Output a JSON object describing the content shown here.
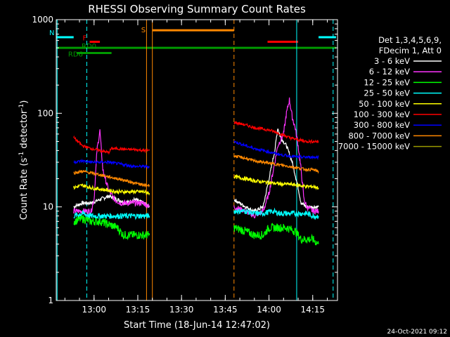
{
  "chart_data": {
    "type": "line",
    "title": "RHESSI Observing Summary Count Rates",
    "xlabel": "Start Time (18-Jun-14 12:47:02)",
    "ylabel_main": "Count Rate (s",
    "ylabel_sup1": "-1",
    "ylabel_mid": " detector",
    "ylabel_sup2": "-1",
    "ylabel_end": ")",
    "y_scale": "log",
    "ylim": [
      1,
      1000
    ],
    "xlim": [
      "12:47:02",
      "14:23:30"
    ],
    "x_ticks": [
      {
        "time": "13:00",
        "label": "13:00"
      },
      {
        "time": "13:15",
        "label": "13:15"
      },
      {
        "time": "13:30",
        "label": "13:30"
      },
      {
        "time": "13:45",
        "label": "13:45"
      },
      {
        "time": "14:00",
        "label": "14:00"
      },
      {
        "time": "14:15",
        "label": "14:15"
      }
    ],
    "y_ticks": [
      {
        "value": 1,
        "label": "1"
      },
      {
        "value": 10,
        "label": "10"
      },
      {
        "value": 100,
        "label": "100"
      },
      {
        "value": 1000,
        "label": "1000"
      }
    ],
    "legend_position": "right",
    "legend_header": [
      "Det 1,3,4,5,6,9,",
      "FDecim 1, Att 0"
    ],
    "series": [
      {
        "name": "3 - 6 keV",
        "color": "#ffffff",
        "seg1": [
          [
            "12:53",
            10
          ],
          [
            "12:56",
            11
          ],
          [
            "12:59",
            11
          ],
          [
            "13:02",
            12
          ],
          [
            "13:05",
            13
          ],
          [
            "13:08",
            12
          ],
          [
            "13:11",
            11
          ],
          [
            "13:14",
            12
          ],
          [
            "13:17",
            11
          ],
          [
            "13:19",
            10
          ]
        ],
        "seg2": [
          [
            "13:48",
            12
          ],
          [
            "13:52",
            10
          ],
          [
            "13:55",
            9
          ],
          [
            "13:58",
            10
          ],
          [
            "14:00",
            20
          ],
          [
            "14:02",
            40
          ],
          [
            "14:03",
            70
          ],
          [
            "14:04",
            55
          ],
          [
            "14:06",
            45
          ],
          [
            "14:08",
            30
          ],
          [
            "14:10",
            16
          ],
          [
            "14:11",
            11
          ],
          [
            "14:13",
            10
          ],
          [
            "14:15",
            10
          ],
          [
            "14:17",
            10
          ]
        ]
      },
      {
        "name": "6 - 12 keV",
        "color": "#ff33ff",
        "seg1": [
          [
            "12:53",
            9
          ],
          [
            "12:56",
            9
          ],
          [
            "12:59",
            9
          ],
          [
            "13:00",
            12
          ],
          [
            "13:01",
            40
          ],
          [
            "13:02",
            65
          ],
          [
            "13:03",
            25
          ],
          [
            "13:05",
            15
          ],
          [
            "13:07",
            12
          ],
          [
            "13:09",
            11
          ],
          [
            "13:11",
            11
          ],
          [
            "13:14",
            11
          ],
          [
            "13:17",
            11
          ],
          [
            "13:19",
            10
          ]
        ],
        "seg2": [
          [
            "13:48",
            10
          ],
          [
            "13:52",
            9
          ],
          [
            "13:55",
            8
          ],
          [
            "13:58",
            9
          ],
          [
            "14:00",
            14
          ],
          [
            "14:02",
            30
          ],
          [
            "14:03",
            45
          ],
          [
            "14:05",
            60
          ],
          [
            "14:06",
            100
          ],
          [
            "14:07",
            140
          ],
          [
            "14:08",
            90
          ],
          [
            "14:09",
            70
          ],
          [
            "14:10",
            45
          ],
          [
            "14:11",
            25
          ],
          [
            "14:12",
            12
          ],
          [
            "14:13",
            10
          ],
          [
            "14:15",
            9
          ],
          [
            "14:17",
            9
          ]
        ]
      },
      {
        "name": "12 - 25 keV",
        "color": "#00ff00",
        "seg1": [
          [
            "12:53",
            7
          ],
          [
            "12:56",
            7.5
          ],
          [
            "12:59",
            7
          ],
          [
            "13:02",
            7
          ],
          [
            "13:05",
            6.5
          ],
          [
            "13:08",
            6
          ],
          [
            "13:10",
            5
          ],
          [
            "13:13",
            5
          ],
          [
            "13:16",
            5
          ],
          [
            "13:19",
            5
          ]
        ],
        "seg2": [
          [
            "13:48",
            6
          ],
          [
            "13:52",
            5.5
          ],
          [
            "13:55",
            5
          ],
          [
            "13:58",
            5
          ],
          [
            "14:00",
            6
          ],
          [
            "14:03",
            6
          ],
          [
            "14:06",
            6
          ],
          [
            "14:09",
            5.5
          ],
          [
            "14:11",
            4.5
          ],
          [
            "14:13",
            4.5
          ],
          [
            "14:15",
            4.5
          ],
          [
            "14:17",
            4
          ]
        ]
      },
      {
        "name": "25 - 50 keV",
        "color": "#00ffff",
        "seg1": [
          [
            "12:53",
            8
          ],
          [
            "12:56",
            8.5
          ],
          [
            "12:59",
            8
          ],
          [
            "13:02",
            8
          ],
          [
            "13:05",
            8
          ],
          [
            "13:08",
            8
          ],
          [
            "13:11",
            8
          ],
          [
            "13:14",
            8
          ],
          [
            "13:17",
            8
          ],
          [
            "13:19",
            8
          ]
        ],
        "seg2": [
          [
            "13:48",
            9
          ],
          [
            "13:52",
            9
          ],
          [
            "13:55",
            8.5
          ],
          [
            "13:58",
            8.5
          ],
          [
            "14:01",
            9
          ],
          [
            "14:04",
            8.5
          ],
          [
            "14:07",
            8.5
          ],
          [
            "14:10",
            8.5
          ],
          [
            "14:13",
            8.5
          ],
          [
            "14:15",
            8
          ],
          [
            "14:17",
            8
          ]
        ]
      },
      {
        "name": "50 - 100 keV",
        "color": "#ffff00",
        "seg1": [
          [
            "12:53",
            16
          ],
          [
            "12:56",
            17
          ],
          [
            "12:59",
            16
          ],
          [
            "13:02",
            15.5
          ],
          [
            "13:05",
            15
          ],
          [
            "13:08",
            14.5
          ],
          [
            "13:11",
            14.5
          ],
          [
            "13:14",
            14.5
          ],
          [
            "13:17",
            14.5
          ],
          [
            "13:19",
            14
          ]
        ],
        "seg2": [
          [
            "13:48",
            21
          ],
          [
            "13:52",
            20
          ],
          [
            "13:55",
            19
          ],
          [
            "13:58",
            18.5
          ],
          [
            "14:01",
            18
          ],
          [
            "14:04",
            17.5
          ],
          [
            "14:07",
            17.5
          ],
          [
            "14:10",
            17
          ],
          [
            "14:13",
            16.5
          ],
          [
            "14:15",
            16.5
          ],
          [
            "14:17",
            16
          ]
        ]
      },
      {
        "name": "100 - 300 keV",
        "color": "#ff0000",
        "seg1": [
          [
            "12:53",
            55
          ],
          [
            "12:56",
            45
          ],
          [
            "12:59",
            42
          ],
          [
            "13:02",
            40
          ],
          [
            "13:05",
            38
          ],
          [
            "13:06",
            42
          ],
          [
            "13:08",
            42
          ],
          [
            "13:11",
            41
          ],
          [
            "13:14",
            41
          ],
          [
            "13:17",
            40
          ],
          [
            "13:19",
            40
          ]
        ],
        "seg2": [
          [
            "13:48",
            80
          ],
          [
            "13:52",
            75
          ],
          [
            "13:55",
            70
          ],
          [
            "13:58",
            68
          ],
          [
            "14:01",
            65
          ],
          [
            "14:04",
            60
          ],
          [
            "14:07",
            55
          ],
          [
            "14:10",
            52
          ],
          [
            "14:13",
            50
          ],
          [
            "14:15",
            50
          ],
          [
            "14:17",
            50
          ]
        ]
      },
      {
        "name": "300 - 800 keV",
        "color": "#0000ff",
        "seg1": [
          [
            "12:53",
            30
          ],
          [
            "12:56",
            31
          ],
          [
            "12:59",
            30
          ],
          [
            "13:02",
            30
          ],
          [
            "13:05",
            30
          ],
          [
            "13:08",
            29
          ],
          [
            "13:11",
            28
          ],
          [
            "13:14",
            27
          ],
          [
            "13:17",
            27
          ],
          [
            "13:19",
            27
          ]
        ],
        "seg2": [
          [
            "13:48",
            50
          ],
          [
            "13:52",
            45
          ],
          [
            "13:55",
            42
          ],
          [
            "13:58",
            40
          ],
          [
            "14:01",
            38
          ],
          [
            "14:04",
            36
          ],
          [
            "14:07",
            35
          ],
          [
            "14:10",
            34
          ],
          [
            "14:13",
            34
          ],
          [
            "14:15",
            34
          ],
          [
            "14:17",
            34
          ]
        ]
      },
      {
        "name": "800 - 7000 keV",
        "color": "#ff8800",
        "seg1": [
          [
            "12:53",
            23
          ],
          [
            "12:56",
            24
          ],
          [
            "12:59",
            23
          ],
          [
            "13:02",
            22
          ],
          [
            "13:05",
            21
          ],
          [
            "13:08",
            20
          ],
          [
            "13:11",
            19
          ],
          [
            "13:14",
            18
          ],
          [
            "13:17",
            17
          ],
          [
            "13:19",
            17
          ]
        ],
        "seg2": [
          [
            "13:48",
            35
          ],
          [
            "13:52",
            33
          ],
          [
            "13:55",
            31
          ],
          [
            "13:58",
            30
          ],
          [
            "14:01",
            29
          ],
          [
            "14:04",
            28
          ],
          [
            "14:07",
            27
          ],
          [
            "14:10",
            26
          ],
          [
            "14:13",
            25
          ],
          [
            "14:15",
            25
          ],
          [
            "14:17",
            24
          ]
        ]
      },
      {
        "name": "7000 - 15000 keV",
        "color": "#999900",
        "seg1": [],
        "seg2": []
      }
    ],
    "flags": [
      {
        "label": "N",
        "color": "#00ffff",
        "segments": [
          [
            "12:47:02",
            "12:53:00"
          ],
          [
            "14:17:00",
            "14:23:00"
          ]
        ],
        "y": 650
      },
      {
        "label": "F",
        "color": "#ff0000",
        "segments": [
          [
            "12:58:30",
            "13:02:00"
          ],
          [
            "13:59:30",
            "14:10:00"
          ]
        ],
        "y": 580
      },
      {
        "label": "S",
        "color": "#ff8800",
        "segments": [
          [
            "13:20:00",
            "13:48:00"
          ]
        ],
        "y": 770
      },
      {
        "label": "RD0",
        "color": "#009900",
        "segments": [
          [
            "12:47:02",
            "14:23:00"
          ]
        ],
        "y": 500
      },
      {
        "label": "RD6",
        "color": "#009900",
        "segments": [
          [
            "12:54:00",
            "13:06:00"
          ]
        ],
        "y": 440
      }
    ],
    "vertical_markers": [
      {
        "time": "12:47:20",
        "color": "#00ffff",
        "style": "solid"
      },
      {
        "time": "12:57:30",
        "color": "#00ffff",
        "style": "dashed"
      },
      {
        "time": "13:18:00",
        "color": "#ff8800",
        "style": "solid"
      },
      {
        "time": "13:20:00",
        "color": "#ff8800",
        "style": "solid"
      },
      {
        "time": "13:48:00",
        "color": "#ff8800",
        "style": "dashed"
      },
      {
        "time": "14:09:30",
        "color": "#00ffff",
        "style": "solid"
      },
      {
        "time": "14:22:00",
        "color": "#00ffff",
        "style": "dashed"
      }
    ]
  },
  "footer": {
    "timestamp": "24-Oct-2021 09:12"
  }
}
